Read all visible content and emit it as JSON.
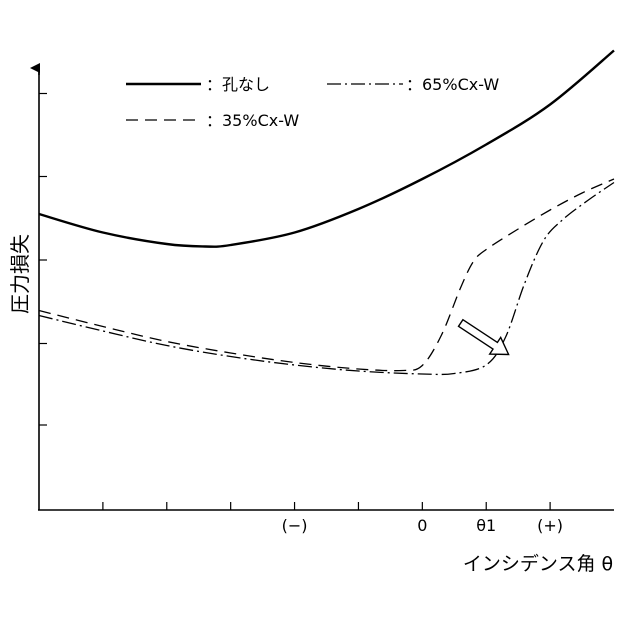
{
  "chart_data": {
    "type": "line",
    "xlabel": "インシデンス角 θ",
    "ylabel": "圧力損失",
    "x_tick_labels": [
      {
        "label": "(−)",
        "x": -2.0
      },
      {
        "label": "0",
        "x": 0.0
      },
      {
        "label": "θ1",
        "x": 1.0
      },
      {
        "label": "(+)",
        "x": 2.0
      }
    ],
    "xlim": [
      -6.0,
      3.0
    ],
    "ylim": [
      0,
      10
    ],
    "grid": false,
    "legend_position": "top",
    "series": [
      {
        "name": "孔なし",
        "key": "solid",
        "dash": "",
        "width": 2.4,
        "points": [
          [
            -6.0,
            5.92
          ],
          [
            -5.0,
            5.55
          ],
          [
            -4.0,
            5.32
          ],
          [
            -3.4,
            5.27
          ],
          [
            -3.0,
            5.3
          ],
          [
            -2.0,
            5.55
          ],
          [
            -1.0,
            6.02
          ],
          [
            0.0,
            6.62
          ],
          [
            1.0,
            7.31
          ],
          [
            2.0,
            8.11
          ],
          [
            3.0,
            9.19
          ]
        ]
      },
      {
        "name": "35%Cx-W",
        "key": "dashed",
        "dash": "12,7",
        "width": 1.3,
        "points": [
          [
            -6.0,
            3.99
          ],
          [
            -5.0,
            3.67
          ],
          [
            -4.0,
            3.37
          ],
          [
            -3.0,
            3.14
          ],
          [
            -2.0,
            2.95
          ],
          [
            -1.0,
            2.82
          ],
          [
            -0.3,
            2.79
          ],
          [
            0.0,
            2.89
          ],
          [
            0.3,
            3.5
          ],
          [
            0.6,
            4.45
          ],
          [
            0.8,
            4.97
          ],
          [
            1.0,
            5.21
          ],
          [
            1.5,
            5.62
          ],
          [
            2.0,
            6.0
          ],
          [
            2.5,
            6.34
          ],
          [
            3.0,
            6.62
          ]
        ]
      },
      {
        "name": "65%Cx-W",
        "key": "dashdot",
        "dash": "14,4,2,4",
        "width": 1.3,
        "points": [
          [
            -6.0,
            3.89
          ],
          [
            -5.0,
            3.58
          ],
          [
            -4.0,
            3.29
          ],
          [
            -3.0,
            3.07
          ],
          [
            -2.0,
            2.9
          ],
          [
            -1.0,
            2.78
          ],
          [
            0.0,
            2.72
          ],
          [
            0.5,
            2.73
          ],
          [
            1.0,
            2.9
          ],
          [
            1.3,
            3.45
          ],
          [
            1.6,
            4.53
          ],
          [
            1.9,
            5.39
          ],
          [
            2.2,
            5.81
          ],
          [
            2.6,
            6.2
          ],
          [
            3.0,
            6.55
          ]
        ]
      }
    ],
    "annotations": [
      {
        "type": "arrow",
        "from": [
          0.6,
          3.74
        ],
        "to": [
          1.35,
          3.11
        ]
      }
    ]
  },
  "legend": {
    "items": [
      {
        "key": "solid",
        "label": "：孔なし"
      },
      {
        "key": "dashdot",
        "label": "：65%Cx-W"
      },
      {
        "key": "dashed",
        "label": "：35%Cx-W"
      }
    ]
  }
}
